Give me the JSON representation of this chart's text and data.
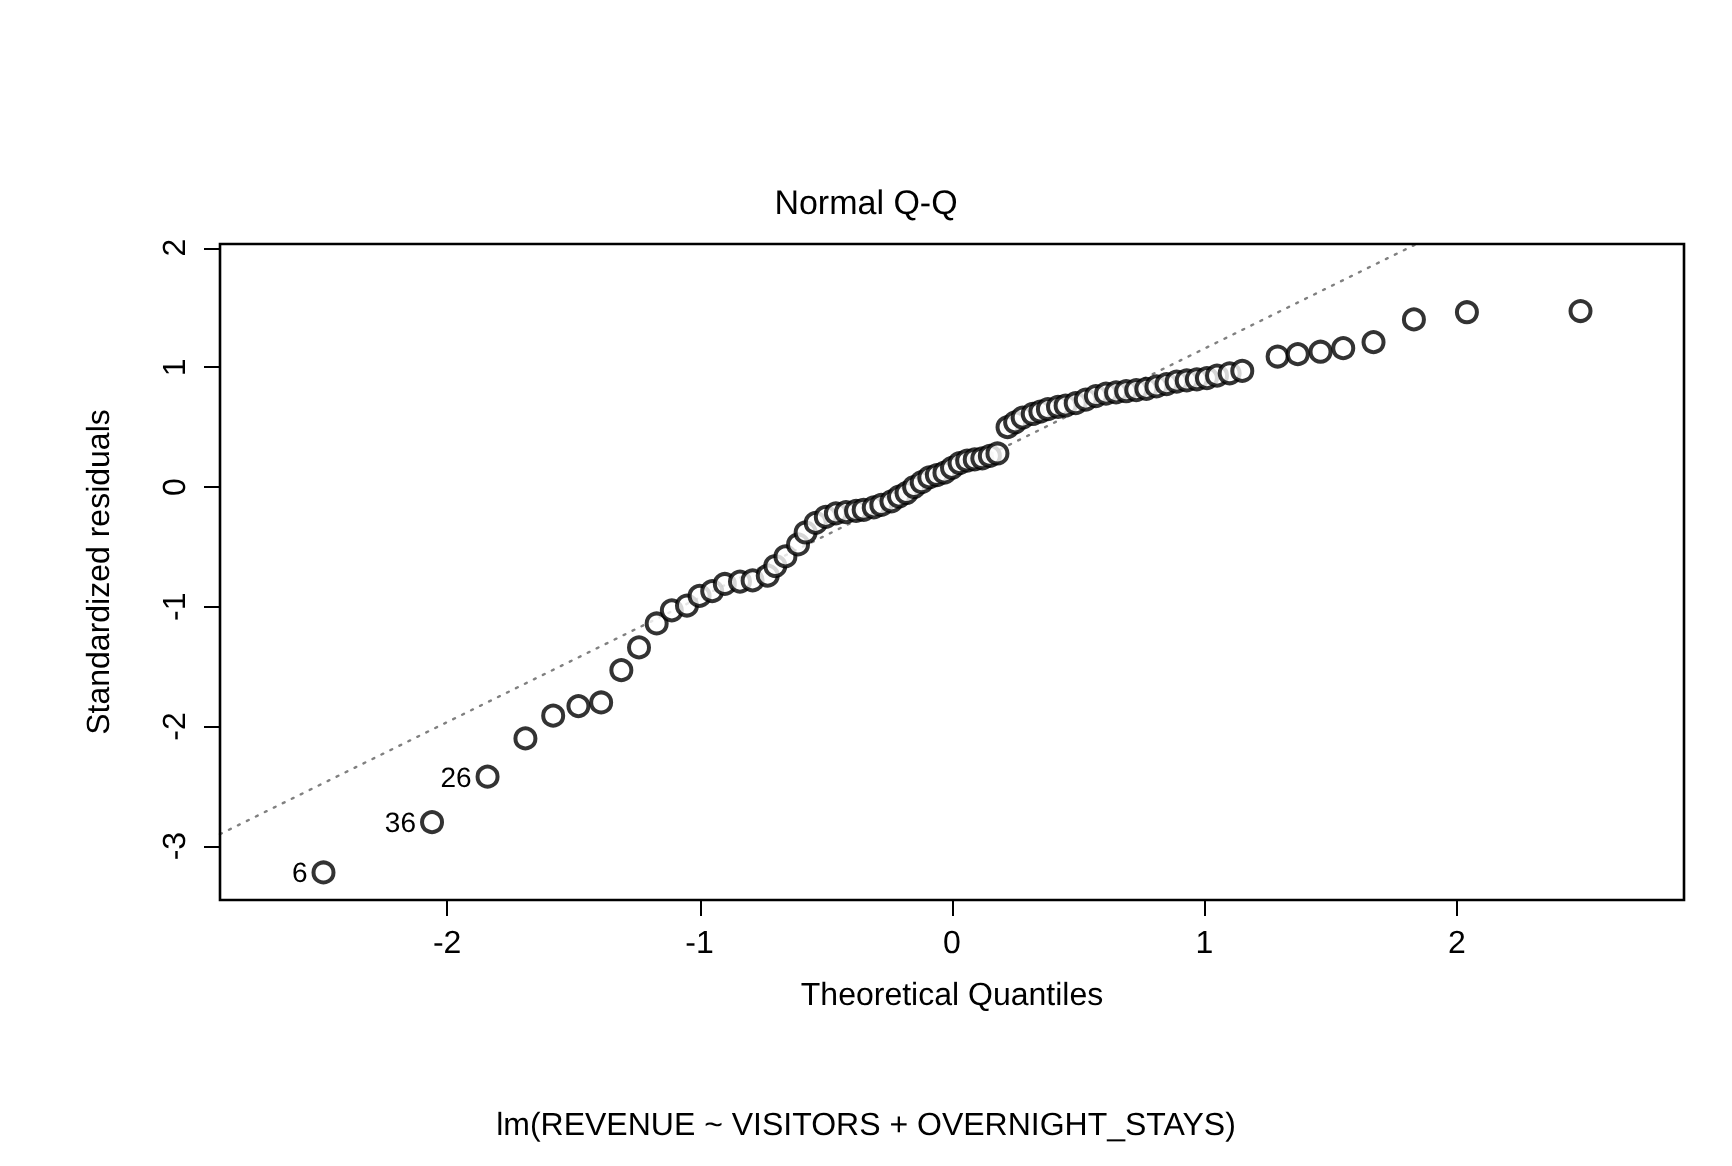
{
  "chart_data": {
    "type": "scatter",
    "title": "Normal Q-Q",
    "xlabel": "Theoretical Quantiles",
    "ylabel": "Standardized residuals",
    "xlim": [
      -2.9,
      2.9
    ],
    "ylim": [
      -3.45,
      2.03
    ],
    "xticks": [
      -2,
      -1,
      0,
      1,
      2
    ],
    "yticks": [
      -3,
      -2,
      -1,
      0,
      1,
      2
    ],
    "series": [
      {
        "color": "#000000",
        "marker": "circle",
        "x": [
          -2.49,
          -2.06,
          -1.84,
          -1.69,
          -1.58,
          -1.48,
          -1.39,
          -1.31,
          -1.24,
          -1.17,
          -1.11,
          -1.05,
          -1.0,
          -0.95,
          -0.9,
          -0.84,
          -0.79,
          -0.73,
          -0.7,
          -0.66,
          -0.61,
          -0.58,
          -0.54,
          -0.5,
          -0.46,
          -0.42,
          -0.38,
          -0.35,
          -0.31,
          -0.28,
          -0.24,
          -0.21,
          -0.18,
          -0.15,
          -0.12,
          -0.09,
          -0.06,
          -0.03,
          0.0,
          0.03,
          0.06,
          0.09,
          0.12,
          0.15,
          0.18,
          0.22,
          0.25,
          0.28,
          0.32,
          0.35,
          0.38,
          0.42,
          0.45,
          0.49,
          0.53,
          0.57,
          0.61,
          0.65,
          0.69,
          0.73,
          0.77,
          0.81,
          0.85,
          0.89,
          0.93,
          0.97,
          1.01,
          1.05,
          1.1,
          1.15,
          1.29,
          1.37,
          1.46,
          1.55,
          1.67,
          1.83,
          2.04,
          2.49
        ],
        "values": [
          -3.22,
          -2.8,
          -2.42,
          -2.1,
          -1.91,
          -1.83,
          -1.8,
          -1.53,
          -1.34,
          -1.14,
          -1.03,
          -0.99,
          -0.91,
          -0.87,
          -0.81,
          -0.79,
          -0.78,
          -0.74,
          -0.66,
          -0.58,
          -0.48,
          -0.38,
          -0.3,
          -0.25,
          -0.22,
          -0.21,
          -0.2,
          -0.19,
          -0.17,
          -0.15,
          -0.12,
          -0.08,
          -0.05,
          0.0,
          0.04,
          0.08,
          0.1,
          0.12,
          0.16,
          0.2,
          0.22,
          0.23,
          0.24,
          0.26,
          0.28,
          0.5,
          0.54,
          0.58,
          0.61,
          0.63,
          0.65,
          0.67,
          0.68,
          0.7,
          0.73,
          0.76,
          0.78,
          0.79,
          0.8,
          0.81,
          0.82,
          0.84,
          0.86,
          0.88,
          0.89,
          0.9,
          0.91,
          0.93,
          0.95,
          0.97,
          1.09,
          1.11,
          1.13,
          1.16,
          1.21,
          1.4,
          1.46,
          1.47
        ]
      },
      {
        "type": "line",
        "color": "#808080",
        "line_style": "dotted",
        "marker": "none",
        "x": [
          -2.9,
          1.84
        ],
        "values": [
          -2.9,
          2.03
        ]
      }
    ],
    "annotations": [
      {
        "text": "6",
        "x": -2.49,
        "y": -3.22
      },
      {
        "text": "36",
        "x": -2.06,
        "y": -2.8
      },
      {
        "text": "26",
        "x": -1.84,
        "y": -2.42
      },
      "lm(REVENUE ~ VISITORS + OVERNIGHT_STAYS)"
    ]
  }
}
